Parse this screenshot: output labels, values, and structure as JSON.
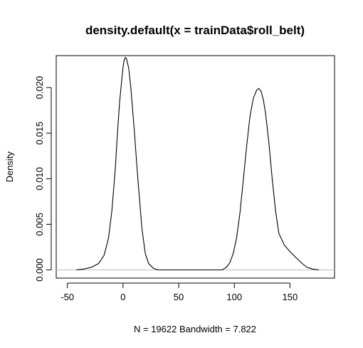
{
  "chart_data": {
    "type": "line",
    "title": "density.default(x = trainData$roll_belt)",
    "xlabel": "N = 19622   Bandwidth = 7.822",
    "ylabel": "Density",
    "xlim": [
      -60,
      190
    ],
    "ylim": [
      -0.0009,
      0.0235
    ],
    "x_ticks": [
      -50,
      0,
      50,
      100,
      150
    ],
    "x_tick_labels": [
      "-50",
      "0",
      "50",
      "100",
      "150"
    ],
    "y_ticks": [
      0.0,
      0.005,
      0.01,
      0.015,
      0.02
    ],
    "y_tick_labels": [
      "0.000",
      "0.005",
      "0.010",
      "0.015",
      "0.020"
    ],
    "baseline": 0,
    "grid": false,
    "series": [
      {
        "x": [
          -42,
          -35,
          -28,
          -22,
          -17,
          -13,
          -10,
          -7,
          -5,
          -3,
          -1,
          0,
          1,
          2,
          3,
          5,
          7,
          10,
          13,
          17,
          20,
          23,
          27,
          31,
          40,
          60,
          80,
          89,
          93,
          96,
          99,
          102,
          105,
          108,
          111,
          114,
          117,
          120,
          122,
          124,
          126,
          128,
          131,
          134,
          137,
          140,
          145,
          150,
          155,
          160,
          165,
          170,
          176
        ],
        "y": [
          0,
          0.0001,
          0.0003,
          0.0007,
          0.0016,
          0.0035,
          0.0065,
          0.011,
          0.015,
          0.0185,
          0.021,
          0.0222,
          0.023,
          0.0233,
          0.0232,
          0.0222,
          0.02,
          0.0155,
          0.0105,
          0.0045,
          0.0018,
          0.0007,
          0.0002,
          0,
          0,
          0,
          0,
          0,
          0.0003,
          0.0008,
          0.0018,
          0.0035,
          0.0062,
          0.0098,
          0.0135,
          0.0168,
          0.0188,
          0.0197,
          0.0199,
          0.0196,
          0.0187,
          0.0172,
          0.014,
          0.01,
          0.0065,
          0.004,
          0.0027,
          0.002,
          0.0014,
          0.0008,
          0.0003,
          0.0001,
          0
        ]
      }
    ]
  }
}
